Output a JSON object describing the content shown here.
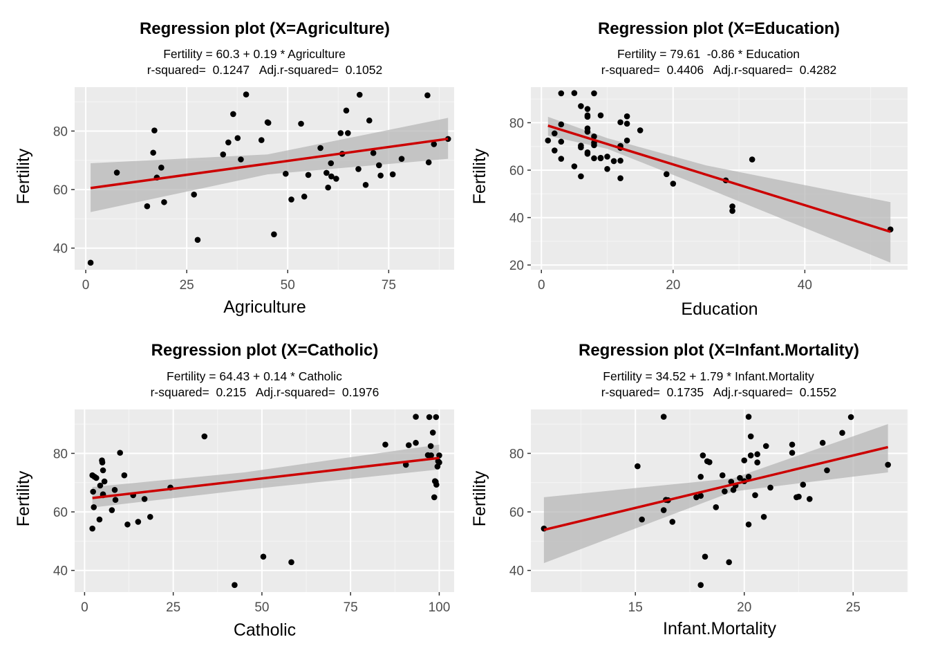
{
  "chart_data": [
    {
      "type": "scatter",
      "title": "Regression plot (X=Agriculture)",
      "equation": "Fertility = 60.3 + 0.19 * Agriculture",
      "rsquared": "r-squared=  0.1247   Adj.r-squared=  0.1052",
      "xlabel": "Agriculture",
      "ylabel": "Fertility",
      "xlim": [
        -2.75,
        91.2
      ],
      "ylim": [
        32.6,
        95.0
      ],
      "xticks": [
        0,
        25,
        50,
        75
      ],
      "yticks": [
        40,
        60,
        80
      ],
      "grid": true,
      "colors": {
        "points": "#000000",
        "line": "#cc0000",
        "band": "#b3b3b3",
        "panel": "#ebebeb"
      },
      "fit": {
        "intercept": 60.3,
        "slope": 0.19,
        "x": [
          1.2,
          89.7
        ]
      },
      "band": [
        {
          "x": 1.2,
          "lo": 52.3,
          "hi": 69.0
        },
        {
          "x": 45,
          "lo": 65.2,
          "hi": 72.0
        },
        {
          "x": 89.7,
          "lo": 70.5,
          "hi": 84.5
        }
      ],
      "x": [
        1.2,
        7.7,
        15.2,
        16.7,
        17.0,
        17.6,
        18.7,
        19.4,
        26.8,
        27.7,
        34.0,
        35.3,
        36.5,
        37.6,
        38.4,
        39.7,
        43.5,
        45.0,
        45.2,
        46.6,
        49.5,
        50.9,
        53.3,
        54.1,
        55.1,
        58.1,
        59.6,
        60.0,
        60.7,
        60.8,
        62.0,
        63.1,
        63.5,
        64.5,
        64.9,
        67.5,
        67.8,
        69.3,
        70.2,
        71.2,
        72.6,
        73.0,
        76.0,
        78.2,
        84.6,
        84.9,
        86.2,
        89.7
      ],
      "y": [
        35.0,
        65.8,
        54.3,
        72.6,
        80.2,
        64.1,
        67.5,
        55.7,
        58.3,
        42.8,
        72.0,
        76.1,
        85.8,
        77.6,
        70.3,
        92.5,
        76.9,
        83.0,
        82.8,
        44.7,
        65.4,
        56.6,
        82.5,
        57.6,
        65.0,
        74.2,
        65.7,
        60.7,
        69.0,
        64.5,
        63.7,
        79.3,
        72.2,
        87.0,
        79.3,
        67.0,
        92.4,
        61.6,
        83.6,
        72.5,
        68.3,
        64.8,
        65.2,
        70.5,
        92.2,
        69.3,
        75.5,
        77.3
      ]
    },
    {
      "type": "scatter",
      "title": "Regression plot (X=Education)",
      "equation": "Fertility = 79.61  -0.86 * Education",
      "rsquared": "r-squared=  0.4406   Adj.r-squared=  0.4282",
      "xlabel": "Education",
      "ylabel": "Fertility",
      "xlim": [
        -1.6,
        55.6
      ],
      "ylim": [
        18.0,
        95.0
      ],
      "xticks": [
        0,
        20,
        40
      ],
      "yticks": [
        20,
        40,
        60,
        80
      ],
      "grid": true,
      "colors": {
        "points": "#000000",
        "line": "#cc0000",
        "band": "#b3b3b3",
        "panel": "#ebebeb"
      },
      "fit": {
        "intercept": 79.61,
        "slope": -0.86,
        "x": [
          1,
          53
        ]
      },
      "band": [
        {
          "x": 1,
          "lo": 74.5,
          "hi": 82.5
        },
        {
          "x": 10,
          "lo": 69.0,
          "hi": 73.5
        },
        {
          "x": 25,
          "lo": 52.5,
          "hi": 62.0
        },
        {
          "x": 53,
          "lo": 21.0,
          "hi": 46.5
        }
      ],
      "x": [
        1,
        2,
        2,
        3,
        3,
        3,
        3,
        5,
        5,
        6,
        6,
        6,
        6,
        7,
        7,
        7,
        7,
        7,
        7,
        7,
        8,
        8,
        8,
        8,
        8,
        9,
        9,
        9,
        10,
        10,
        11,
        12,
        12,
        12,
        12,
        12,
        13,
        13,
        13,
        15,
        19,
        20,
        28,
        29,
        29,
        32,
        53
      ],
      "y": [
        72.5,
        75.5,
        68.3,
        92.4,
        79.3,
        72.0,
        64.8,
        92.5,
        61.6,
        87.0,
        69.6,
        70.3,
        57.4,
        85.8,
        83.1,
        82.5,
        77.6,
        76.2,
        67.5,
        66.9,
        92.4,
        74.2,
        71.6,
        70.5,
        65.0,
        83.1,
        65.0,
        65.2,
        65.7,
        60.5,
        63.8,
        80.2,
        70.2,
        69.4,
        64.0,
        56.6,
        82.7,
        79.6,
        72.5,
        76.8,
        58.3,
        54.3,
        55.7,
        44.7,
        42.8,
        64.5,
        35.0
      ]
    },
    {
      "type": "scatter",
      "title": "Regression plot (X=Catholic)",
      "equation": "Fertility = 64.43 + 0.14 * Catholic",
      "rsquared": "r-squared=  0.215   Adj.r-squared=  0.1976",
      "xlabel": "Catholic",
      "ylabel": "Fertility",
      "xlim": [
        -2.8,
        104.2
      ],
      "ylim": [
        32.6,
        95.0
      ],
      "xticks": [
        0,
        25,
        50,
        75,
        100
      ],
      "yticks": [
        40,
        60,
        80
      ],
      "grid": true,
      "colors": {
        "points": "#000000",
        "line": "#cc0000",
        "band": "#b3b3b3",
        "panel": "#ebebeb"
      },
      "fit": {
        "intercept": 64.43,
        "slope": 0.14,
        "x": [
          2.2,
          100
        ]
      },
      "band": [
        {
          "x": 2.2,
          "lo": 61.5,
          "hi": 68.5
        },
        {
          "x": 45,
          "lo": 67.5,
          "hi": 73.5
        },
        {
          "x": 100,
          "lo": 74.5,
          "hi": 83.0
        }
      ],
      "x": [
        2.2,
        2.2,
        2.4,
        2.6,
        2.8,
        3.3,
        4.2,
        4.4,
        4.9,
        5.0,
        5.2,
        5.2,
        5.6,
        5.2,
        7.7,
        8.5,
        8.7,
        10.0,
        11.2,
        12.1,
        13.7,
        15.1,
        16.9,
        18.5,
        24.2,
        33.8,
        50.4,
        58.3,
        42.3,
        84.8,
        90.6,
        91.4,
        93.4,
        93.4,
        96.8,
        97.2,
        97.6,
        97.7,
        98.2,
        98.6,
        98.8,
        99.0,
        99.1,
        99.2,
        99.5,
        99.7,
        100.0,
        100.0
      ],
      "y": [
        72.5,
        54.3,
        66.9,
        61.6,
        72.0,
        71.6,
        57.4,
        69.0,
        77.6,
        76.9,
        74.2,
        65.7,
        70.4,
        66.0,
        60.6,
        67.5,
        64.1,
        80.2,
        72.5,
        55.7,
        65.7,
        56.6,
        64.4,
        58.3,
        68.3,
        85.8,
        44.7,
        42.8,
        35.0,
        83.0,
        76.1,
        82.8,
        92.5,
        83.6,
        79.4,
        92.4,
        82.5,
        79.3,
        87.1,
        65.0,
        70.5,
        70.3,
        92.4,
        69.3,
        75.5,
        77.3,
        79.3,
        76.9
      ]
    },
    {
      "type": "scatter",
      "title": "Regression plot (X=Infant.Mortality)",
      "equation": "Fertility = 34.52 + 1.79 * Infant.Mortality",
      "rsquared": "r-squared=  0.1735   Adj.r-squared=  0.1552",
      "xlabel": "Infant.Mortality",
      "ylabel": "Fertility",
      "xlim": [
        10.2,
        27.5
      ],
      "ylim": [
        32.6,
        95.0
      ],
      "xticks": [
        15,
        20,
        25
      ],
      "yticks": [
        40,
        60,
        80
      ],
      "grid": true,
      "colors": {
        "points": "#000000",
        "line": "#cc0000",
        "band": "#b3b3b3",
        "panel": "#ebebeb"
      },
      "fit": {
        "intercept": 34.52,
        "slope": 1.79,
        "x": [
          10.8,
          26.6
        ]
      },
      "band": [
        {
          "x": 10.8,
          "lo": 42.5,
          "hi": 65.0
        },
        {
          "x": 19.5,
          "lo": 67.0,
          "hi": 71.5
        },
        {
          "x": 26.6,
          "lo": 73.5,
          "hi": 90.0
        }
      ],
      "x": [
        10.8,
        15.1,
        15.3,
        16.3,
        16.3,
        16.5,
        16.7,
        17.8,
        18.0,
        18.1,
        18.2,
        18.3,
        18.4,
        18.0,
        18.7,
        19.0,
        19.1,
        19.3,
        19.4,
        19.5,
        19.6,
        19.8,
        20.0,
        20.0,
        20.2,
        20.3,
        20.2,
        20.3,
        20.5,
        20.6,
        20.9,
        21.0,
        21.2,
        22.2,
        22.2,
        22.4,
        22.5,
        22.7,
        23.0,
        23.6,
        23.8,
        24.5,
        24.9,
        26.6,
        16.4,
        20.2,
        18.0,
        20.6
      ],
      "y": [
        54.3,
        75.6,
        57.4,
        92.5,
        60.6,
        64.0,
        56.6,
        65.0,
        35.0,
        79.3,
        44.7,
        77.3,
        77.0,
        65.5,
        61.6,
        72.5,
        67.0,
        42.8,
        70.3,
        67.5,
        69.0,
        71.6,
        77.6,
        70.5,
        92.5,
        85.8,
        55.7,
        79.3,
        65.7,
        76.9,
        58.3,
        82.5,
        68.3,
        83.0,
        80.2,
        65.0,
        65.2,
        69.3,
        64.4,
        83.6,
        74.2,
        87.0,
        92.4,
        76.1,
        64.1,
        72.0,
        72.0,
        79.7
      ]
    }
  ]
}
